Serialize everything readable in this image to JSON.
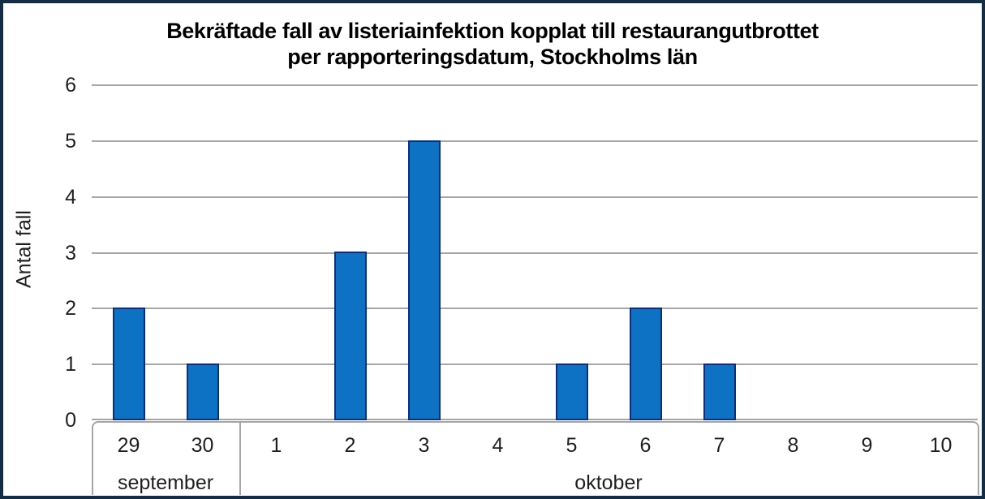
{
  "window": {
    "background": "#ffffff",
    "frame_border_color": "#142c44"
  },
  "chart_data": {
    "type": "bar",
    "title": "Bekräftade fall av listeriainfektion kopplat till restaurangutbrottet per rapporteringsdatum, Stockholms län",
    "title_lines": [
      "Bekräftade fall av listeriainfektion kopplat till restaurangutbrottet",
      "per rapporteringsdatum, Stockholms län"
    ],
    "ylabel": "Antal fall",
    "xlabel": "",
    "ylim": [
      0,
      6
    ],
    "yticks": [
      0,
      1,
      2,
      3,
      4,
      5,
      6
    ],
    "grid": true,
    "legend": false,
    "categories": [
      "29",
      "30",
      "1",
      "2",
      "3",
      "4",
      "5",
      "6",
      "7",
      "8",
      "9",
      "10"
    ],
    "values": [
      2,
      1,
      0,
      3,
      5,
      0,
      1,
      2,
      1,
      0,
      0,
      0
    ],
    "x_groups": [
      {
        "label": "september",
        "span": 2
      },
      {
        "label": "oktober",
        "span": 10
      }
    ],
    "colors": {
      "bar_fill": "#0e72c4",
      "bar_border": "#0c2e7e",
      "gridline": "#a6a6a6",
      "axis_box": "#a6a6a6",
      "tick_text": "#1f1f1f",
      "title_text": "#000000"
    }
  }
}
